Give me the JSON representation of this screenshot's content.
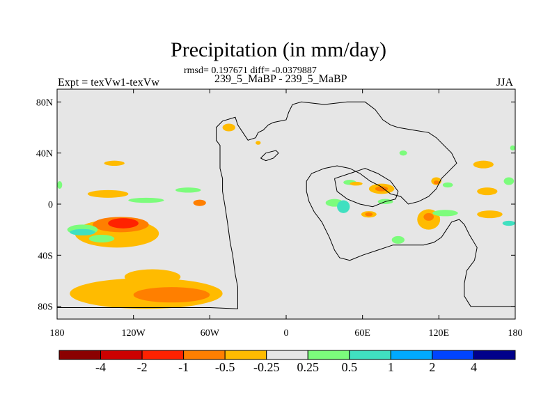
{
  "header": {
    "title": "Precipitation (in mm/day)",
    "subtitle": "rmsd= 0.197671 diff= -0.0379887",
    "left_label": "Expt = texVw1-texVw",
    "center_label": "239_5_MaBP - 239_5_MaBP",
    "right_label": "JJA"
  },
  "chart_data": {
    "type": "heatmap",
    "title": "Precipitation (in mm/day)",
    "subtitle": "rmsd= 0.197671 diff= -0.0379887",
    "season": "JJA",
    "x_axis": {
      "range": [
        -180,
        180
      ],
      "ticks": [
        -180,
        -120,
        -60,
        0,
        60,
        120,
        180
      ],
      "tick_labels": [
        "180",
        "120W",
        "60W",
        "0",
        "60E",
        "120E",
        "180"
      ]
    },
    "y_axis": {
      "range": [
        -90,
        90
      ],
      "ticks": [
        80,
        40,
        0,
        -40,
        -80
      ],
      "tick_labels": [
        "80N",
        "40N",
        "0",
        "40S",
        "80S"
      ]
    },
    "background_color": "#e6e6e6",
    "colorbar": {
      "labels": [
        "-4",
        "-2",
        "-1",
        "-0.5",
        "-0.25",
        "0.25",
        "0.5",
        "1",
        "2",
        "4"
      ],
      "colors": [
        "#8b0000",
        "#cc0000",
        "#ff2200",
        "#ff7f00",
        "#ffbb00",
        "#e6e6e6",
        "#7cfc7c",
        "#40e0c0",
        "#00aaff",
        "#0044ff",
        "#00008b"
      ]
    },
    "regions": [
      {
        "level": "-0.25",
        "color": "#ffbb00",
        "lon": -133,
        "lat": -23,
        "dlon": 33,
        "dlat": 11
      },
      {
        "level": "-0.5",
        "color": "#ff7f00",
        "lon": -130,
        "lat": -16,
        "dlon": 22,
        "dlat": 6
      },
      {
        "level": "-1",
        "color": "#ff2200",
        "lon": -128,
        "lat": -15,
        "dlon": 12,
        "dlat": 4
      },
      {
        "level": "0.5",
        "color": "#7cfc7c",
        "lon": -160,
        "lat": -20,
        "dlon": 12,
        "dlat": 4
      },
      {
        "level": "1",
        "color": "#40e0c0",
        "lon": -160,
        "lat": -22,
        "dlon": 10,
        "dlat": 2.5
      },
      {
        "level": "0.5",
        "color": "#7cfc7c",
        "lon": -145,
        "lat": -27,
        "dlon": 10,
        "dlat": 3
      },
      {
        "level": "-0.25",
        "color": "#ffbb00",
        "lon": -110,
        "lat": -70,
        "dlon": 60,
        "dlat": 12
      },
      {
        "level": "-0.25",
        "color": "#ffbb00",
        "lon": -105,
        "lat": -57,
        "dlon": 22,
        "dlat": 6
      },
      {
        "level": "-0.5",
        "color": "#ff7f00",
        "lon": -90,
        "lat": -71,
        "dlon": 30,
        "dlat": 6
      },
      {
        "level": "-0.25",
        "color": "#ffbb00",
        "lon": -140,
        "lat": 8,
        "dlon": 16,
        "dlat": 3
      },
      {
        "level": "-0.25",
        "color": "#ffbb00",
        "lon": -135,
        "lat": 32,
        "dlon": 8,
        "dlat": 2
      },
      {
        "level": "0.5",
        "color": "#7cfc7c",
        "lon": -110,
        "lat": 3,
        "dlon": 14,
        "dlat": 2
      },
      {
        "level": "0.5",
        "color": "#7cfc7c",
        "lon": -77,
        "lat": 11,
        "dlon": 10,
        "dlat": 2
      },
      {
        "level": "-0.5",
        "color": "#ff7f00",
        "lon": -68,
        "lat": 1,
        "dlon": 5,
        "dlat": 2.5
      },
      {
        "level": "-0.25",
        "color": "#ffbb00",
        "lon": -45,
        "lat": 60,
        "dlon": 5,
        "dlat": 3
      },
      {
        "level": "-0.25",
        "color": "#ffbb00",
        "lon": -22,
        "lat": 48,
        "dlon": 2,
        "dlat": 1.5
      },
      {
        "level": "0.5",
        "color": "#7cfc7c",
        "lon": 38,
        "lat": 1,
        "dlon": 7,
        "dlat": 3
      },
      {
        "level": "1",
        "color": "#40e0c0",
        "lon": 45,
        "lat": -2,
        "dlon": 5,
        "dlat": 5
      },
      {
        "level": "-0.25",
        "color": "#ffbb00",
        "lon": 65,
        "lat": -8,
        "dlon": 6,
        "dlat": 2.5
      },
      {
        "level": "-0.5",
        "color": "#ff7f00",
        "lon": 65,
        "lat": -8,
        "dlon": 3,
        "dlat": 1.5
      },
      {
        "level": "-0.25",
        "color": "#ffbb00",
        "lon": 75,
        "lat": 12,
        "dlon": 10,
        "dlat": 4
      },
      {
        "level": "-0.5",
        "color": "#ff7f00",
        "lon": 75,
        "lat": 12,
        "dlon": 5,
        "dlat": 2
      },
      {
        "level": "0.5",
        "color": "#7cfc7c",
        "lon": 78,
        "lat": 2,
        "dlon": 6,
        "dlat": 2
      },
      {
        "level": "0.5",
        "color": "#7cfc7c",
        "lon": 50,
        "lat": 17,
        "dlon": 5,
        "dlat": 2
      },
      {
        "level": "-0.25",
        "color": "#ffbb00",
        "lon": 55,
        "lat": 16,
        "dlon": 5,
        "dlat": 1.5
      },
      {
        "level": "0.5",
        "color": "#7cfc7c",
        "lon": 92,
        "lat": 40,
        "dlon": 3,
        "dlat": 2
      },
      {
        "level": "-0.25",
        "color": "#ffbb00",
        "lon": 112,
        "lat": -12,
        "dlon": 9,
        "dlat": 8
      },
      {
        "level": "-0.5",
        "color": "#ff7f00",
        "lon": 112,
        "lat": -10,
        "dlon": 4,
        "dlat": 3
      },
      {
        "level": "0.5",
        "color": "#7cfc7c",
        "lon": 125,
        "lat": -7,
        "dlon": 10,
        "dlat": 2.5
      },
      {
        "level": "-0.25",
        "color": "#ffbb00",
        "lon": 118,
        "lat": 18,
        "dlon": 4,
        "dlat": 3
      },
      {
        "level": "-0.5",
        "color": "#ff7f00",
        "lon": 118,
        "lat": 17,
        "dlon": 2,
        "dlat": 1.5
      },
      {
        "level": "0.5",
        "color": "#7cfc7c",
        "lon": 127,
        "lat": 15,
        "dlon": 4,
        "dlat": 2
      },
      {
        "level": "-0.25",
        "color": "#ffbb00",
        "lon": 155,
        "lat": 31,
        "dlon": 8,
        "dlat": 3
      },
      {
        "level": "-0.25",
        "color": "#ffbb00",
        "lon": 158,
        "lat": 10,
        "dlon": 8,
        "dlat": 3
      },
      {
        "level": "-0.25",
        "color": "#ffbb00",
        "lon": 160,
        "lat": -8,
        "dlon": 10,
        "dlat": 3
      },
      {
        "level": "0.5",
        "color": "#7cfc7c",
        "lon": 175,
        "lat": 18,
        "dlon": 4,
        "dlat": 3
      },
      {
        "level": "1",
        "color": "#40e0c0",
        "lon": 175,
        "lat": -15,
        "dlon": 5,
        "dlat": 2
      },
      {
        "level": "0.5",
        "color": "#7cfc7c",
        "lon": 88,
        "lat": -28,
        "dlon": 5,
        "dlat": 3
      },
      {
        "level": "0.5",
        "color": "#7cfc7c",
        "lon": 178,
        "lat": 44,
        "dlon": 2,
        "dlat": 2
      },
      {
        "level": "0.5",
        "color": "#7cfc7c",
        "lon": -178,
        "lat": 15,
        "dlon": 2,
        "dlat": 3
      }
    ],
    "continent_outlines": [
      {
        "name": "western-continent",
        "points": [
          [
            -38,
            -82
          ],
          [
            -38,
            -65
          ],
          [
            -40,
            -55
          ],
          [
            -42,
            -40
          ],
          [
            -44,
            -30
          ],
          [
            -46,
            -15
          ],
          [
            -48,
            -2
          ],
          [
            -50,
            10
          ],
          [
            -50,
            20
          ],
          [
            -52,
            28
          ],
          [
            -52,
            36
          ],
          [
            -52,
            46
          ],
          [
            -55,
            50
          ],
          [
            -55,
            60
          ],
          [
            -50,
            65
          ],
          [
            -40,
            68
          ],
          [
            -38,
            62
          ],
          [
            -34,
            56
          ],
          [
            -30,
            50
          ],
          [
            -24,
            52
          ],
          [
            -22,
            56
          ],
          [
            -18,
            58
          ],
          [
            -14,
            62
          ],
          [
            -10,
            64
          ],
          [
            0,
            66
          ],
          [
            2,
            72
          ],
          [
            5,
            78
          ],
          [
            12,
            80
          ],
          [
            30,
            78
          ],
          [
            48,
            80
          ],
          [
            62,
            80
          ],
          [
            70,
            74
          ],
          [
            76,
            66
          ],
          [
            82,
            62
          ],
          [
            88,
            60
          ],
          [
            100,
            58
          ],
          [
            112,
            56
          ],
          [
            118,
            52
          ],
          [
            124,
            46
          ],
          [
            130,
            40
          ],
          [
            134,
            32
          ],
          [
            128,
            26
          ],
          [
            122,
            20
          ],
          [
            118,
            12
          ],
          [
            112,
            6
          ],
          [
            104,
            2
          ],
          [
            96,
            0
          ],
          [
            90,
            6
          ],
          [
            82,
            8
          ],
          [
            74,
            14
          ],
          [
            66,
            18
          ],
          [
            58,
            24
          ],
          [
            50,
            28
          ],
          [
            40,
            30
          ],
          [
            30,
            28
          ],
          [
            20,
            24
          ],
          [
            16,
            18
          ],
          [
            16,
            10
          ],
          [
            18,
            2
          ],
          [
            22,
            -6
          ],
          [
            28,
            -14
          ],
          [
            34,
            -26
          ],
          [
            38,
            -36
          ],
          [
            42,
            -42
          ],
          [
            50,
            -44
          ],
          [
            60,
            -40
          ],
          [
            72,
            -36
          ],
          [
            84,
            -32
          ],
          [
            96,
            -32
          ],
          [
            108,
            -32
          ],
          [
            116,
            -30
          ],
          [
            122,
            -26
          ],
          [
            126,
            -20
          ],
          [
            130,
            -14
          ],
          [
            136,
            -12
          ],
          [
            140,
            -16
          ],
          [
            144,
            -24
          ],
          [
            150,
            -34
          ],
          [
            148,
            -44
          ],
          [
            142,
            -52
          ],
          [
            140,
            -62
          ],
          [
            140,
            -72
          ],
          [
            145,
            -80
          ],
          [
            180,
            -80
          ]
        ]
      },
      {
        "name": "southern-coast",
        "points": [
          [
            -180,
            -81
          ],
          [
            -100,
            -81
          ],
          [
            -60,
            -81
          ],
          [
            -38,
            -82
          ]
        ]
      },
      {
        "name": "inner-sea",
        "points": [
          [
            38,
            20
          ],
          [
            50,
            24
          ],
          [
            62,
            28
          ],
          [
            72,
            24
          ],
          [
            82,
            18
          ],
          [
            88,
            10
          ],
          [
            86,
            4
          ],
          [
            78,
            2
          ],
          [
            68,
            -2
          ],
          [
            58,
            0
          ],
          [
            48,
            4
          ],
          [
            40,
            10
          ],
          [
            38,
            20
          ]
        ]
      },
      {
        "name": "island-north",
        "points": [
          [
            -20,
            36
          ],
          [
            -16,
            40
          ],
          [
            -8,
            42
          ],
          [
            -6,
            40
          ],
          [
            -10,
            36
          ],
          [
            -16,
            34
          ],
          [
            -20,
            36
          ]
        ]
      }
    ]
  }
}
